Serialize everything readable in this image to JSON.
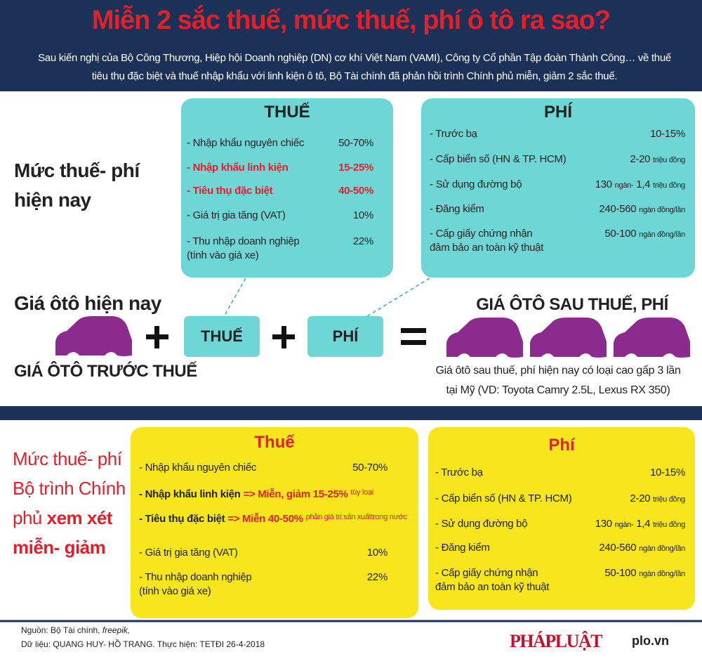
{
  "header": {
    "title": "Miễn 2 sắc thuế, mức thuế, phí ô tô ra sao?",
    "intro": "Sau kiến nghị của Bộ Công Thương, Hiệp hội Doanh nghiệp (DN) cơ khí Việt Nam (VAMI), Công ty Cổ phần Tập đoàn Thành Công… về thuế tiêu thụ đặc biệt và thuế nhập khẩu với linh kiện ô tô, Bộ Tài chính đã phản hồi trình Chính phủ miễn, giảm 2 sắc thuế."
  },
  "current": {
    "label": [
      "Mức thuế- phí",
      "hiện nay"
    ],
    "tax": {
      "title": "THUẾ",
      "rows": [
        {
          "label": "- Nhập khẩu nguyên chiếc",
          "value": "50-70%"
        },
        {
          "label": "- Nhập khẩu linh kiện",
          "value": "15-25%"
        },
        {
          "label": "- Tiêu thụ đặc biệt",
          "value": "40-50%"
        },
        {
          "label": "- Giá trị gia tăng (VAT)",
          "value": "10%"
        },
        {
          "label": "- Thu nhập doanh nghiệp",
          "note": "(tính vào giá xe)",
          "value": "22%"
        }
      ]
    },
    "fee": {
      "title": "PHÍ",
      "rows": [
        {
          "label": "- Trước bạ",
          "value": "10-15%"
        },
        {
          "label": "- Cấp biển số (HN & TP. HCM)",
          "value": "2-20",
          "unit": "triệu đồng"
        },
        {
          "label": "- Sử dụng đường bộ",
          "value": "130",
          "unit": "ngàn-",
          "value2": "1,4",
          "unit2": "triệu đồng"
        },
        {
          "label": "- Đăng kiểm",
          "value": "240-560",
          "unit": "ngàn đồng/lần"
        },
        {
          "label": "-  Cấp giấy chứng nhận",
          "note": "đảm bảo an toàn kỹ thuật",
          "value": "50-100",
          "unit": "ngàn đồng/lần"
        }
      ]
    }
  },
  "formula": {
    "car_label": "Giá ôtô hiện nay",
    "car_caption": "GIÁ ÔTÔ TRƯỚC THUẾ",
    "tax": "THUẾ",
    "fee": "PHÍ",
    "result_title": "GIÁ ÔTÔ SAU THUẾ, PHÍ",
    "result_note": [
      "Giá ôtô sau thuế, phí hiện nay có loại cao gấp 3 lần",
      "tại Mỹ (VD: Toyota Camry 2.5L, Lexus RX 350)"
    ]
  },
  "proposed": {
    "label": {
      "line1": "Mức thuế- phí",
      "line2": "Bộ trình Chính",
      "line3": "phủ",
      "line3_bold": "xem xét",
      "line4": "miễn- giảm"
    },
    "tax": {
      "title": "Thuế",
      "rows": [
        {
          "label": "- Nhập khẩu nguyên chiếc",
          "value": "50-70%"
        },
        {
          "label": "- Nhập khẩu linh kiện",
          "action": "=> Miễn, giảm",
          "rate": "15-25%",
          "small": [
            "tùy loại"
          ]
        },
        {
          "label": "- Tiêu thụ đặc biệt",
          "action": "=> Miễn",
          "rate": "40-50%",
          "small": [
            "phần giá trị sản xuất",
            "trong nước"
          ]
        },
        {
          "label": "- Giá trị gia tăng (VAT)",
          "value": "10%"
        },
        {
          "label": "- Thu nhập doanh nghiệp",
          "note": "(tính vào giá xe)",
          "value": "22%"
        }
      ]
    },
    "fee": {
      "title": "Phí",
      "rows": [
        {
          "label": "- Trước bạ",
          "value": "10-15%"
        },
        {
          "label": "- Cấp biển số (HN & TP. HCM)",
          "value": "2-20",
          "unit": "triệu đồng"
        },
        {
          "label": "- Sử dụng đường bộ",
          "value": "130",
          "unit": "ngàn-",
          "value2": "1,4",
          "unit2": "triệu đồng"
        },
        {
          "label": "- Đăng kiểm",
          "value": "240-560",
          "unit": "ngàn đồng/lần"
        },
        {
          "label": "-  Cấp giấy chứng nhận",
          "note": "đảm bảo an toàn kỹ thuật",
          "value": "50-100",
          "unit": "ngàn đồng/lần"
        }
      ]
    }
  },
  "footer": {
    "source": "Nguồn: Bộ Tài chính,",
    "source_italic": "freepik,",
    "credits": "Dữ liệu:  QUANG HUY- HỒ TRANG. Thực hiện: TETĐI  26-4-2018",
    "logo": "PHÁPLUẬT",
    "site": "plo.vn"
  }
}
